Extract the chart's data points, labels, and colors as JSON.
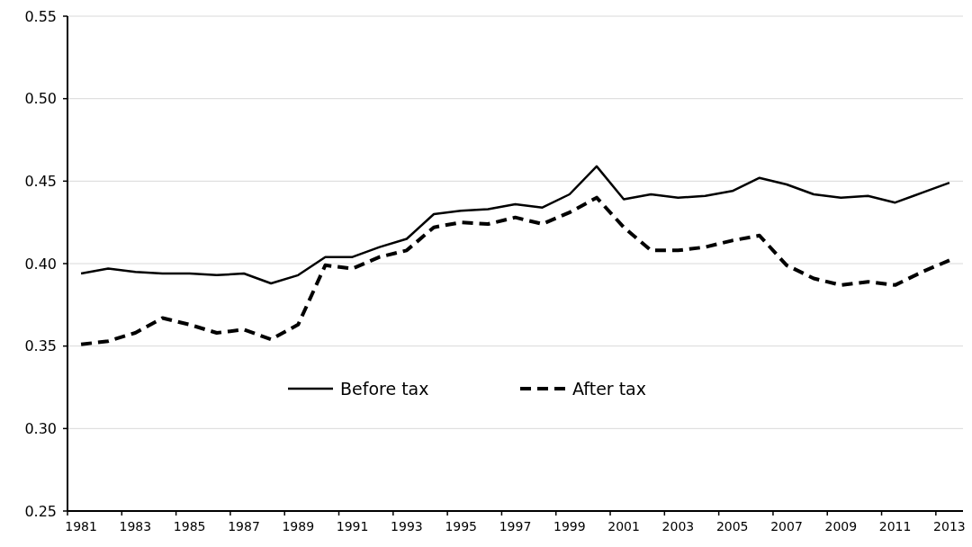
{
  "chart_data": {
    "type": "line",
    "categories": [
      "1981",
      null,
      "1983",
      null,
      "1985",
      null,
      "1987",
      null,
      "1989",
      null,
      "1991",
      null,
      "1993",
      null,
      "1995",
      null,
      "1997",
      null,
      "1999",
      null,
      "2001",
      null,
      "2003",
      null,
      "2005",
      null,
      "2007",
      null,
      "2009",
      null,
      "2011",
      null,
      "2013"
    ],
    "series": [
      {
        "name": "Before tax",
        "color": "#000000",
        "line_style": "solid",
        "values": [
          0.394,
          0.397,
          0.395,
          0.394,
          0.394,
          0.393,
          0.394,
          0.388,
          0.393,
          0.404,
          0.404,
          0.41,
          0.415,
          0.43,
          0.432,
          0.433,
          0.436,
          0.434,
          0.442,
          0.459,
          0.439,
          0.442,
          0.44,
          0.441,
          0.444,
          0.452,
          0.448,
          0.442,
          0.44,
          0.441,
          0.437,
          0.443,
          0.449
        ]
      },
      {
        "name": "After tax",
        "color": "#000000",
        "line_style": "dashed",
        "values": [
          0.351,
          0.353,
          0.358,
          0.367,
          0.363,
          0.358,
          0.36,
          0.354,
          0.363,
          0.399,
          0.397,
          0.404,
          0.408,
          0.422,
          0.425,
          0.424,
          0.428,
          0.424,
          0.431,
          0.44,
          0.422,
          0.408,
          0.408,
          0.41,
          0.414,
          0.417,
          0.399,
          0.391,
          0.387,
          0.389,
          0.387,
          0.395,
          0.402
        ]
      }
    ],
    "ylim": [
      0.25,
      0.55
    ],
    "yticks": [
      0.25,
      {
        "value": 0.3,
        "label": "0.30"
      },
      0.35,
      {
        "value": 0.4,
        "label": "0.40"
      },
      0.45,
      {
        "value": 0.5,
        "label": "0.50"
      },
      0.55
    ],
    "grid": "y",
    "legend": "bottom",
    "marker": "none"
  }
}
